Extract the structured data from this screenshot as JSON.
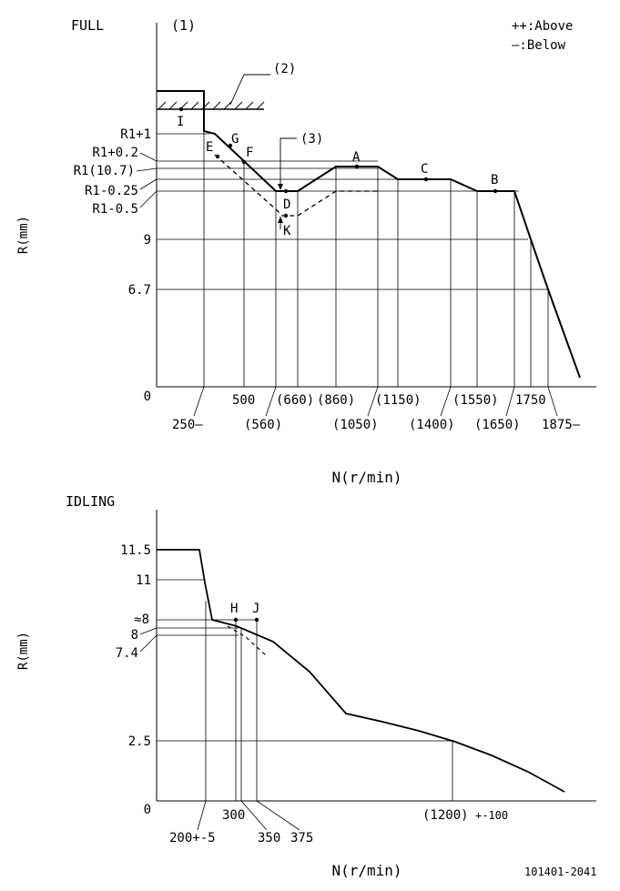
{
  "full": {
    "title": "FULL",
    "ref1": "(1)",
    "ref2": "(2)",
    "ref3": "(3)",
    "legend_above": "++:Above",
    "legend_below": "—:Below",
    "y_axis_label": "R(mm)",
    "x_axis_label": "N(r/min)",
    "y_labels": [
      "R1+1",
      "R1+0.2",
      "R1(10.7)",
      "R1-0.25",
      "R1-0.5",
      "9",
      "6.7",
      "0"
    ],
    "x_labels_upper": [
      "500",
      "(660)",
      "(860)",
      "(1150)",
      "(1550)",
      "1750"
    ],
    "x_labels_lower": [
      "250—",
      "(560)",
      "(1050)",
      "(1400)",
      "(1650)",
      "1875—"
    ],
    "points": [
      "I",
      "E",
      "G",
      "F",
      "D",
      "K",
      "A",
      "C",
      "B"
    ]
  },
  "idling": {
    "title": "IDLING",
    "y_axis_label": "R(mm)",
    "x_axis_label": "N(r/min)",
    "y_labels": [
      "11.5",
      "11",
      "≈8",
      "8",
      "7.4",
      "2.5",
      "0"
    ],
    "x_labels": [
      "300",
      "200+-5",
      "350",
      "375",
      "(1200)",
      "+-100"
    ],
    "points": [
      "H",
      "J"
    ]
  },
  "footer": {
    "code": "101401-2041"
  }
}
